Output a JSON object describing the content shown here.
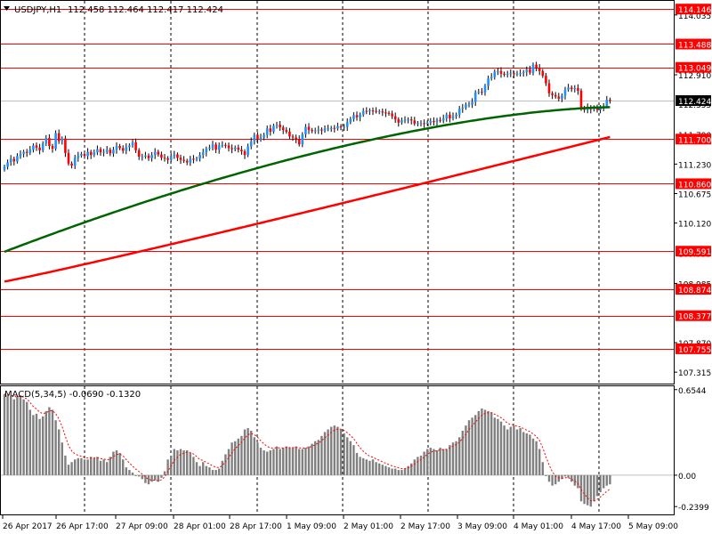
{
  "header": {
    "symbol_label": "USDJPY,H1",
    "ohlc_label": "112.458 112.464 112.417 112.424",
    "menu_arrow_icon": "triangle-down-icon"
  },
  "macd_label": "MACD(5,34,5) -0.0690 -0.1320",
  "colors": {
    "up_candle": "#1e90ff",
    "down_candle": "#ff0000",
    "wick": "#000000",
    "ma_fast": "#006400",
    "ma_slow": "#ff0000",
    "hline": "#ff0000",
    "price_tag_bg": "#ff0000",
    "current_tag_bg": "#000000",
    "macd_hist": "#808080",
    "macd_signal": "#ff0000",
    "grid": "#000000"
  },
  "chart_data": [
    {
      "type": "candlestick",
      "title": "USDJPY,H1",
      "ylim": [
        107.1,
        114.3
      ],
      "price_axis_ticks": [
        "114.035",
        "112.910",
        "111.230",
        "110.675",
        "110.120",
        "108.985",
        "107.870",
        "107.315"
      ],
      "partially_hidden_ticks": [
        "111.790",
        "112.355",
        "109.555",
        "108.430"
      ],
      "time_axis_labels": [
        "26 Apr 2017",
        "26 Apr 17:00",
        "27 Apr 09:00",
        "28 Apr 01:00",
        "28 Apr 17:00",
        "1 May 09:00",
        "2 May 01:00",
        "2 May 17:00",
        "3 May 09:00",
        "4 May 01:00",
        "4 May 17:00",
        "5 May 09:00"
      ],
      "horizontal_levels": [
        114.146,
        113.488,
        113.049,
        111.7,
        110.86,
        109.591,
        108.874,
        108.377,
        107.755
      ],
      "current_price": 112.424,
      "current_price_label": "112.424",
      "level_labels": [
        "114.146",
        "113.488",
        "113.049",
        "111.700",
        "110.860",
        "109.591",
        "108.874",
        "108.377",
        "107.755"
      ],
      "closes": [
        111.18,
        111.26,
        111.33,
        111.28,
        111.38,
        111.42,
        111.46,
        111.44,
        111.5,
        111.58,
        111.54,
        111.49,
        111.62,
        111.72,
        111.57,
        111.52,
        111.81,
        111.66,
        111.71,
        111.44,
        111.24,
        111.2,
        111.35,
        111.39,
        111.42,
        111.38,
        111.46,
        111.4,
        111.45,
        111.51,
        111.45,
        111.46,
        111.5,
        111.43,
        111.5,
        111.57,
        111.53,
        111.48,
        111.55,
        111.58,
        111.64,
        111.49,
        111.37,
        111.37,
        111.39,
        111.34,
        111.4,
        111.46,
        111.41,
        111.35,
        111.34,
        111.31,
        111.38,
        111.41,
        111.35,
        111.31,
        111.29,
        111.26,
        111.33,
        111.32,
        111.33,
        111.4,
        111.45,
        111.52,
        111.54,
        111.6,
        111.5,
        111.58,
        111.59,
        111.58,
        111.53,
        111.51,
        111.54,
        111.5,
        111.47,
        111.4,
        111.56,
        111.66,
        111.78,
        111.69,
        111.73,
        111.78,
        111.9,
        111.84,
        111.95,
        111.97,
        111.92,
        111.87,
        111.84,
        111.75,
        111.73,
        111.7,
        111.6,
        111.79,
        111.93,
        111.87,
        111.85,
        111.86,
        111.88,
        111.86,
        111.9,
        111.9,
        111.91,
        111.9,
        111.94,
        111.92,
        111.93,
        112.02,
        112.08,
        112.15,
        112.11,
        112.16,
        112.23,
        112.22,
        112.24,
        112.23,
        112.22,
        112.22,
        112.2,
        112.19,
        112.18,
        112.13,
        112.07,
        112.01,
        112.05,
        112.06,
        112.07,
        112.05,
        111.99,
        112.0,
        112.0,
        111.99,
        112.01,
        112.04,
        112.02,
        112.06,
        112.05,
        112.09,
        112.16,
        112.09,
        112.13,
        112.16,
        112.27,
        112.29,
        112.35,
        112.35,
        112.4,
        112.58,
        112.59,
        112.58,
        112.7,
        112.84,
        112.87,
        112.97,
        112.98,
        112.93,
        112.91,
        112.93,
        112.94,
        112.92,
        112.93,
        112.94,
        112.96,
        113.01,
        112.95,
        113.1,
        113.04,
        112.98,
        112.89,
        112.75,
        112.56,
        112.53,
        112.5,
        112.46,
        112.52,
        112.63,
        112.67,
        112.64,
        112.66,
        112.61,
        112.27,
        112.25,
        112.3,
        112.26,
        112.28,
        112.25,
        112.3,
        112.32,
        112.44,
        112.42
      ],
      "series": [
        {
          "values_from": "closes",
          "style": "candles"
        },
        {
          "name": "",
          "role": "fast moving average",
          "color_key": "ma_fast"
        },
        {
          "name": "",
          "role": "slow moving average",
          "color_key": "ma_slow"
        }
      ]
    },
    {
      "type": "bar",
      "title": "MACD(5,34,5)",
      "ylim": [
        -0.3,
        0.68
      ],
      "axis_ticks": [
        "0.6544",
        "0.00",
        "-0.2399"
      ],
      "macd_value": -0.069,
      "signal_value": -0.132,
      "histogram": [
        0.62,
        0.61,
        0.6,
        0.58,
        0.6,
        0.61,
        0.58,
        0.56,
        0.5,
        0.46,
        0.47,
        0.43,
        0.45,
        0.49,
        0.52,
        0.5,
        0.42,
        0.35,
        0.25,
        0.15,
        0.08,
        0.1,
        0.12,
        0.13,
        0.13,
        0.12,
        0.12,
        0.14,
        0.13,
        0.14,
        0.11,
        0.12,
        0.1,
        0.14,
        0.18,
        0.19,
        0.17,
        0.12,
        0.06,
        0.04,
        0.02,
        0.0,
        -0.01,
        -0.03,
        -0.06,
        -0.07,
        -0.05,
        -0.04,
        -0.05,
        -0.02,
        0.03,
        0.12,
        0.15,
        0.2,
        0.19,
        0.2,
        0.19,
        0.19,
        0.17,
        0.14,
        0.1,
        0.07,
        0.1,
        0.07,
        0.06,
        0.04,
        0.04,
        0.05,
        0.11,
        0.16,
        0.2,
        0.25,
        0.26,
        0.28,
        0.3,
        0.35,
        0.36,
        0.34,
        0.29,
        0.25,
        0.21,
        0.19,
        0.18,
        0.19,
        0.2,
        0.22,
        0.2,
        0.21,
        0.22,
        0.21,
        0.21,
        0.22,
        0.2,
        0.2,
        0.21,
        0.22,
        0.24,
        0.26,
        0.27,
        0.3,
        0.33,
        0.35,
        0.37,
        0.38,
        0.37,
        0.35,
        0.32,
        0.29,
        0.26,
        0.23,
        0.17,
        0.14,
        0.13,
        0.12,
        0.11,
        0.12,
        0.1,
        0.09,
        0.08,
        0.07,
        0.06,
        0.05,
        0.05,
        0.04,
        0.04,
        0.05,
        0.07,
        0.09,
        0.12,
        0.14,
        0.15,
        0.18,
        0.2,
        0.21,
        0.2,
        0.19,
        0.21,
        0.2,
        0.2,
        0.23,
        0.25,
        0.26,
        0.29,
        0.34,
        0.38,
        0.42,
        0.44,
        0.46,
        0.49,
        0.51,
        0.5,
        0.49,
        0.48,
        0.44,
        0.43,
        0.41,
        0.38,
        0.35,
        0.37,
        0.38,
        0.35,
        0.36,
        0.33,
        0.32,
        0.31,
        0.28,
        0.26,
        0.2,
        0.1,
        0.0,
        -0.05,
        -0.08,
        -0.07,
        -0.05,
        -0.03,
        -0.01,
        -0.02,
        -0.05,
        -0.08,
        -0.1,
        -0.2,
        -0.22,
        -0.23,
        -0.24,
        -0.2,
        -0.16,
        -0.13,
        -0.1,
        -0.08,
        -0.07
      ]
    }
  ]
}
